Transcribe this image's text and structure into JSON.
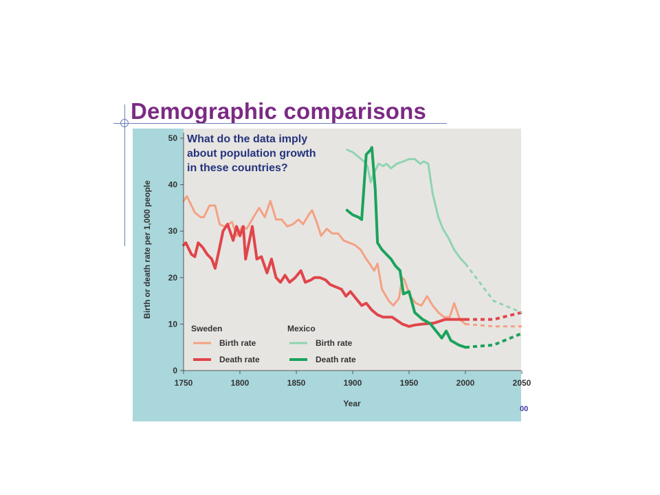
{
  "slide": {
    "title": "Demographic comparisons",
    "corner_mark": "00"
  },
  "colors": {
    "title": "#7b2a84",
    "panel": "#a9d7dc",
    "plot_bg": "#e7e5e2",
    "sweden_birth": "#f4a183",
    "sweden_death": "#e0454a",
    "mexico_birth": "#8fd4b0",
    "mexico_death": "#1aa35c",
    "question": "#24337c"
  },
  "chart_data": {
    "type": "line",
    "question": "What do the data imply about population growth in these countries?",
    "question_lines": [
      "What do the data imply",
      "about population growth",
      "in these countries?"
    ],
    "xlabel": "Year",
    "ylabel": "Birth or death rate per 1,000 people",
    "xlim": [
      1750,
      2050
    ],
    "ylim": [
      0,
      50
    ],
    "xticks": [
      1750,
      1800,
      1850,
      1900,
      1950,
      2000,
      2050
    ],
    "yticks": [
      0,
      10,
      20,
      30,
      40,
      50
    ],
    "grid": false,
    "legend": {
      "placement": "bottom-left",
      "groups": [
        {
          "title": "Sweden",
          "entries": [
            "Birth rate",
            "Death rate"
          ]
        },
        {
          "title": "Mexico",
          "entries": [
            "Birth rate",
            "Death rate"
          ]
        }
      ]
    },
    "series": [
      {
        "name": "Birth rate",
        "country": "Sweden",
        "color": "#f4a183",
        "stroke": 3,
        "points": [
          [
            1750,
            36.5
          ],
          [
            1753,
            37.5
          ],
          [
            1760,
            34
          ],
          [
            1765,
            33
          ],
          [
            1768,
            33
          ],
          [
            1773,
            35.5
          ],
          [
            1778,
            35.5
          ],
          [
            1782,
            31.5
          ],
          [
            1786,
            31
          ],
          [
            1790,
            31.5
          ],
          [
            1793,
            32
          ],
          [
            1797,
            29
          ],
          [
            1802,
            31
          ],
          [
            1806,
            30.5
          ],
          [
            1812,
            33
          ],
          [
            1817,
            35
          ],
          [
            1822,
            33
          ],
          [
            1827,
            36.5
          ],
          [
            1832,
            32.5
          ],
          [
            1837,
            32.5
          ],
          [
            1842,
            31
          ],
          [
            1847,
            31.5
          ],
          [
            1852,
            32.5
          ],
          [
            1856,
            31.5
          ],
          [
            1861,
            33.5
          ],
          [
            1864,
            34.5
          ],
          [
            1868,
            32
          ],
          [
            1872,
            29
          ],
          [
            1877,
            30.5
          ],
          [
            1882,
            29.5
          ],
          [
            1887,
            29.5
          ],
          [
            1892,
            28
          ],
          [
            1897,
            27.5
          ],
          [
            1902,
            27
          ],
          [
            1907,
            26
          ],
          [
            1912,
            24
          ],
          [
            1915,
            23
          ],
          [
            1919,
            21.5
          ],
          [
            1922,
            23
          ],
          [
            1926,
            17.5
          ],
          [
            1932,
            15
          ],
          [
            1936,
            14
          ],
          [
            1941,
            15.5
          ],
          [
            1944,
            20
          ],
          [
            1946,
            19.5
          ],
          [
            1951,
            16
          ],
          [
            1956,
            14.5
          ],
          [
            1961,
            14
          ],
          [
            1966,
            16
          ],
          [
            1971,
            14
          ],
          [
            1976,
            12.5
          ],
          [
            1981,
            11.5
          ],
          [
            1986,
            11.5
          ],
          [
            1990,
            14.5
          ],
          [
            1995,
            11
          ],
          [
            2000,
            10
          ]
        ],
        "projection": [
          [
            2000,
            10
          ],
          [
            2025,
            9.5
          ],
          [
            2050,
            9.5
          ]
        ]
      },
      {
        "name": "Death rate",
        "country": "Sweden",
        "color": "#e0454a",
        "stroke": 4,
        "points": [
          [
            1750,
            27
          ],
          [
            1752,
            27.5
          ],
          [
            1757,
            25
          ],
          [
            1760,
            24.5
          ],
          [
            1763,
            27.5
          ],
          [
            1767,
            26.5
          ],
          [
            1771,
            25
          ],
          [
            1775,
            24
          ],
          [
            1778,
            22
          ],
          [
            1782,
            26.5
          ],
          [
            1785,
            30
          ],
          [
            1789,
            31.5
          ],
          [
            1794,
            28
          ],
          [
            1797,
            31
          ],
          [
            1800,
            29
          ],
          [
            1803,
            31
          ],
          [
            1805,
            24
          ],
          [
            1811,
            31
          ],
          [
            1815,
            24
          ],
          [
            1819,
            24.5
          ],
          [
            1824,
            21
          ],
          [
            1828,
            24
          ],
          [
            1832,
            20
          ],
          [
            1836,
            19
          ],
          [
            1840,
            20.5
          ],
          [
            1844,
            19
          ],
          [
            1849,
            20
          ],
          [
            1854,
            21.5
          ],
          [
            1858,
            19
          ],
          [
            1863,
            19.5
          ],
          [
            1866,
            20
          ],
          [
            1871,
            20
          ],
          [
            1876,
            19.5
          ],
          [
            1880,
            18.5
          ],
          [
            1885,
            18
          ],
          [
            1890,
            17.5
          ],
          [
            1894,
            16
          ],
          [
            1898,
            17
          ],
          [
            1903,
            15.5
          ],
          [
            1908,
            14
          ],
          [
            1912,
            14.5
          ],
          [
            1917,
            13
          ],
          [
            1922,
            12
          ],
          [
            1927,
            11.5
          ],
          [
            1935,
            11.5
          ],
          [
            1944,
            10
          ],
          [
            1950,
            9.5
          ],
          [
            1955,
            9.8
          ],
          [
            1962,
            10
          ],
          [
            1972,
            10.2
          ],
          [
            1982,
            11
          ],
          [
            1993,
            11
          ],
          [
            2000,
            11
          ]
        ],
        "projection": [
          [
            2000,
            11
          ],
          [
            2025,
            11
          ],
          [
            2050,
            12.5
          ]
        ]
      },
      {
        "name": "Birth rate",
        "country": "Mexico",
        "color": "#8fd4b0",
        "stroke": 3,
        "points": [
          [
            1895,
            47.5
          ],
          [
            1900,
            47
          ],
          [
            1905,
            46
          ],
          [
            1910,
            45
          ],
          [
            1913,
            44
          ],
          [
            1916,
            40.5
          ],
          [
            1918,
            42
          ],
          [
            1923,
            44.5
          ],
          [
            1927,
            44
          ],
          [
            1930,
            44.5
          ],
          [
            1934,
            43.5
          ],
          [
            1939,
            44.5
          ],
          [
            1945,
            45
          ],
          [
            1950,
            45.5
          ],
          [
            1955,
            45.5
          ],
          [
            1960,
            44.5
          ],
          [
            1963,
            45
          ],
          [
            1967,
            44.5
          ],
          [
            1971,
            38
          ],
          [
            1976,
            33
          ],
          [
            1980,
            30.5
          ],
          [
            1985,
            28.5
          ],
          [
            1990,
            26
          ],
          [
            1996,
            24
          ],
          [
            2000,
            23
          ]
        ],
        "projection": [
          [
            2000,
            23
          ],
          [
            2025,
            15
          ],
          [
            2050,
            12.5
          ]
        ]
      },
      {
        "name": "Death rate",
        "country": "Mexico",
        "color": "#1aa35c",
        "stroke": 4,
        "points": [
          [
            1895,
            34.5
          ],
          [
            1900,
            33.5
          ],
          [
            1905,
            33
          ],
          [
            1908,
            32.5
          ],
          [
            1912,
            46.5
          ],
          [
            1916,
            47.5
          ],
          [
            1917,
            48
          ],
          [
            1920,
            39
          ],
          [
            1922,
            27.5
          ],
          [
            1926,
            26
          ],
          [
            1930,
            25
          ],
          [
            1934,
            24
          ],
          [
            1938,
            22.5
          ],
          [
            1942,
            21.5
          ],
          [
            1945,
            16.5
          ],
          [
            1950,
            17
          ],
          [
            1955,
            12.5
          ],
          [
            1962,
            11
          ],
          [
            1966,
            10.5
          ],
          [
            1969,
            10
          ],
          [
            1974,
            8.5
          ],
          [
            1979,
            7
          ],
          [
            1983,
            8.5
          ],
          [
            1987,
            6.5
          ],
          [
            1994,
            5.5
          ],
          [
            2000,
            5
          ]
        ],
        "projection": [
          [
            2000,
            5
          ],
          [
            2025,
            5.5
          ],
          [
            2050,
            8
          ]
        ]
      }
    ]
  }
}
